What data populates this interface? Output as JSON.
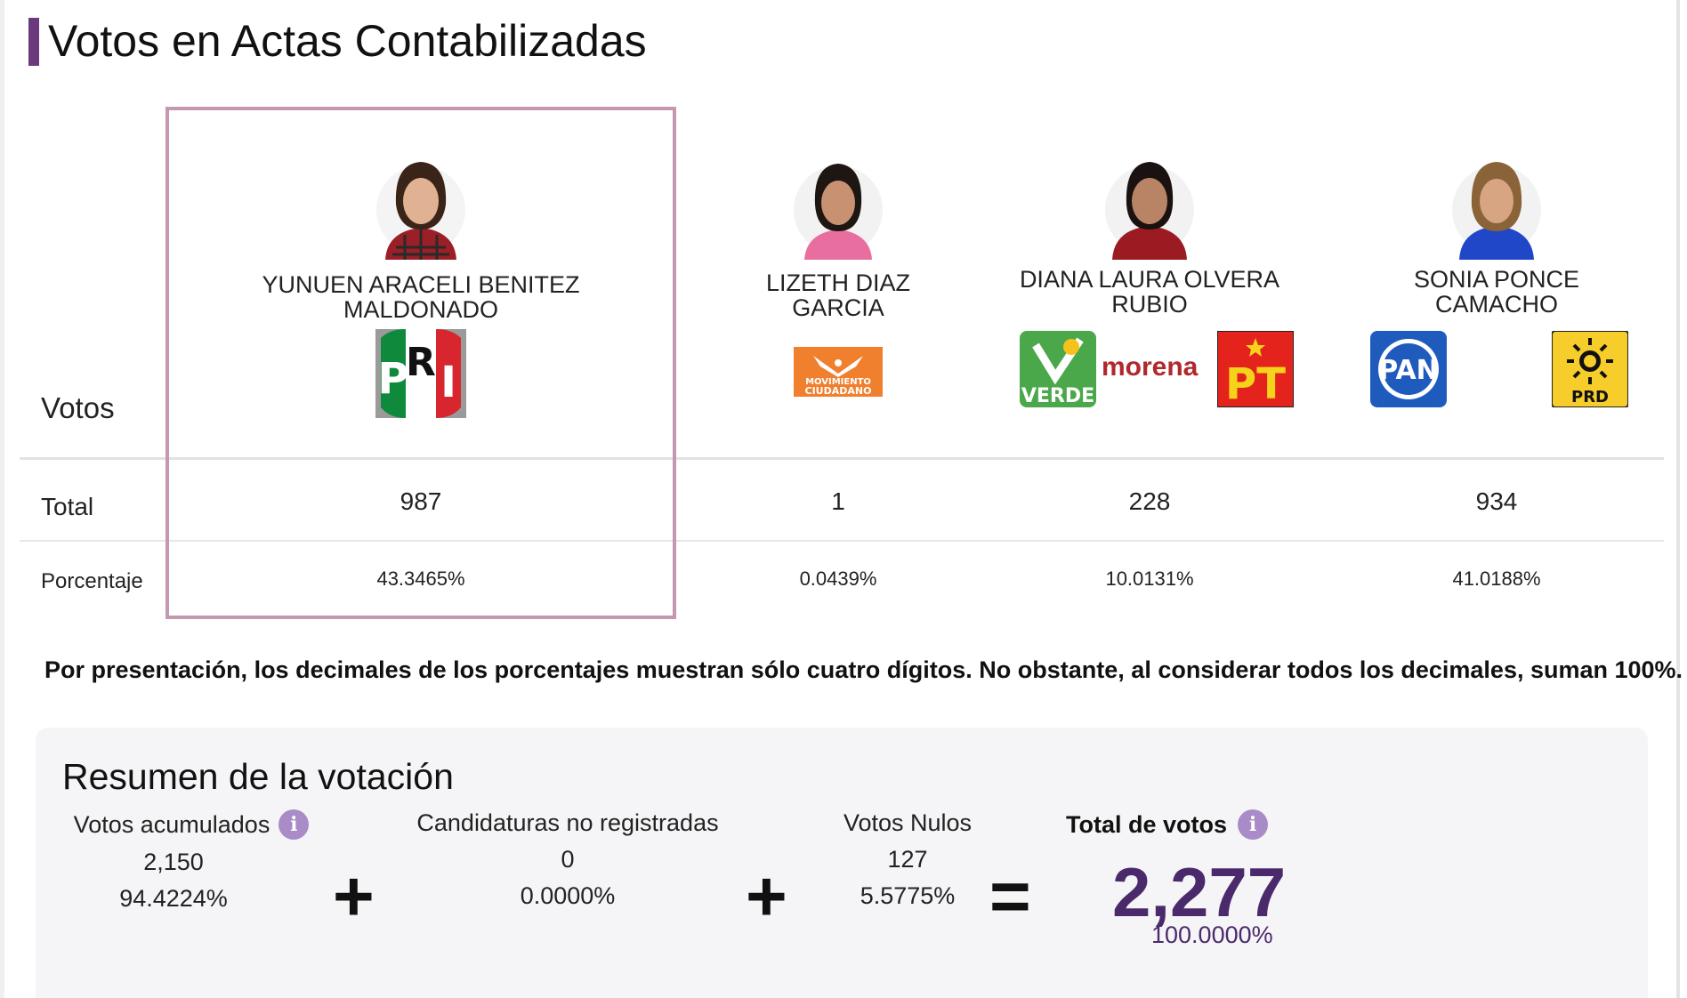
{
  "title": "Votos en Actas Contabilizadas",
  "row_labels": {
    "votos": "Votos",
    "total": "Total",
    "porcentaje": "Porcentaje"
  },
  "candidates": [
    {
      "name_line1": "YUNUEN ARACELI BENITEZ",
      "name_line2": "MALDONADO",
      "total": "987",
      "percent": "43.3465%",
      "parties": [
        "PRI"
      ],
      "highlighted": true
    },
    {
      "name_line1": "LIZETH DIAZ",
      "name_line2": "GARCIA",
      "total": "1",
      "percent": "0.0439%",
      "parties": [
        "MOVIMIENTO CIUDADANO"
      ]
    },
    {
      "name_line1": "DIANA LAURA OLVERA",
      "name_line2": "RUBIO",
      "total": "228",
      "percent": "10.0131%",
      "parties": [
        "VERDE",
        "morena",
        "PT"
      ]
    },
    {
      "name_line1": "SONIA PONCE",
      "name_line2": "CAMACHO",
      "total": "934",
      "percent": "41.0188%",
      "parties": [
        "PAN",
        "PRD"
      ]
    }
  ],
  "logos": {
    "pri_letters": [
      "P",
      "R",
      "I"
    ],
    "mc_line1": "MOVIMIENTO",
    "mc_line2": "CIUDADANO",
    "verde": "VERDE",
    "morena": "morena",
    "pt": "PT",
    "pan": "PAN",
    "prd": "PRD"
  },
  "colors": {
    "accent": "#6b3a7d",
    "highlight_border": "#c598b1",
    "total_purple": "#4b2a6b",
    "info_icon": "#a98bc7"
  },
  "note": "Por presentación, los decimales de los porcentajes muestran sólo cuatro dígitos. No obstante, al considerar todos los decimales, suman 100%.",
  "summary": {
    "title": "Resumen de la votación",
    "acumulados": {
      "label": "Votos acumulados",
      "value": "2,150",
      "percent": "94.4224%"
    },
    "no_registradas": {
      "label": "Candidaturas no registradas",
      "value": "0",
      "percent": "0.0000%"
    },
    "nulos": {
      "label": "Votos Nulos",
      "value": "127",
      "percent": "5.5775%"
    },
    "total": {
      "label": "Total de votos",
      "value": "2,277",
      "percent": "100.0000%"
    },
    "info_glyph": "i",
    "plus": "+",
    "equals": "="
  }
}
